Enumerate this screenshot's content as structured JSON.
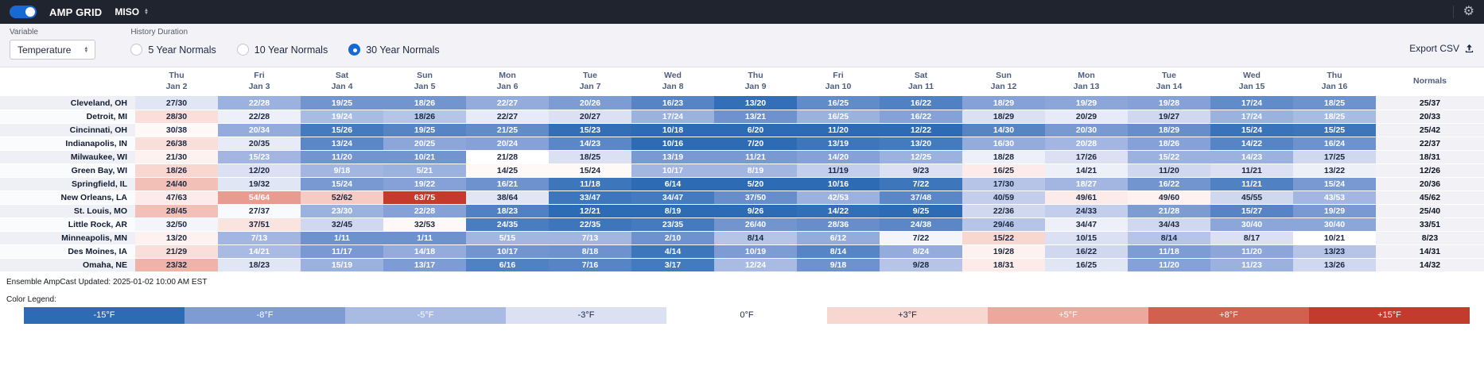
{
  "navbar": {
    "brand": "AMP GRID",
    "region": "MISO"
  },
  "controls": {
    "variable_label": "Variable",
    "variable_value": "Temperature",
    "history_label": "History Duration",
    "options": [
      {
        "label": "5 Year Normals",
        "selected": false
      },
      {
        "label": "10 Year Normals",
        "selected": false
      },
      {
        "label": "30 Year Normals",
        "selected": true
      }
    ],
    "export_label": "Export CSV"
  },
  "chart_data": {
    "type": "heatmap",
    "value_format": "min/max temperature °F",
    "columns": [
      {
        "day": "Thu",
        "date": "Jan 2"
      },
      {
        "day": "Fri",
        "date": "Jan 3"
      },
      {
        "day": "Sat",
        "date": "Jan 4"
      },
      {
        "day": "Sun",
        "date": "Jan 5"
      },
      {
        "day": "Mon",
        "date": "Jan 6"
      },
      {
        "day": "Tue",
        "date": "Jan 7"
      },
      {
        "day": "Wed",
        "date": "Jan 8"
      },
      {
        "day": "Thu",
        "date": "Jan 9"
      },
      {
        "day": "Fri",
        "date": "Jan 10"
      },
      {
        "day": "Sat",
        "date": "Jan 11"
      },
      {
        "day": "Sun",
        "date": "Jan 12"
      },
      {
        "day": "Mon",
        "date": "Jan 13"
      },
      {
        "day": "Tue",
        "date": "Jan 14"
      },
      {
        "day": "Wed",
        "date": "Jan 15"
      },
      {
        "day": "Thu",
        "date": "Jan 16"
      }
    ],
    "normals_header": "Normals",
    "rows": [
      {
        "city": "Cleveland, OH",
        "values": [
          "27/30",
          "22/28",
          "19/25",
          "18/26",
          "22/27",
          "20/26",
          "16/23",
          "13/20",
          "16/25",
          "16/22",
          "18/29",
          "19/29",
          "19/28",
          "17/24",
          "18/25"
        ],
        "normals": "25/37"
      },
      {
        "city": "Detroit, MI",
        "values": [
          "28/30",
          "22/28",
          "19/24",
          "18/26",
          "22/27",
          "20/27",
          "17/24",
          "13/21",
          "16/25",
          "16/22",
          "18/29",
          "20/29",
          "19/27",
          "17/24",
          "18/25"
        ],
        "normals": "20/33"
      },
      {
        "city": "Cincinnati, OH",
        "values": [
          "30/38",
          "20/34",
          "15/26",
          "19/25",
          "21/25",
          "15/23",
          "10/18",
          "6/20",
          "11/20",
          "12/22",
          "14/30",
          "20/30",
          "18/29",
          "15/24",
          "15/25"
        ],
        "normals": "25/42"
      },
      {
        "city": "Indianapolis, IN",
        "values": [
          "26/38",
          "20/35",
          "13/24",
          "20/25",
          "20/24",
          "14/23",
          "10/16",
          "7/20",
          "13/19",
          "13/20",
          "16/30",
          "20/28",
          "18/26",
          "14/22",
          "16/24"
        ],
        "normals": "22/37"
      },
      {
        "city": "Milwaukee, WI",
        "values": [
          "21/30",
          "15/23",
          "11/20",
          "10/21",
          "21/28",
          "18/25",
          "13/19",
          "11/21",
          "14/20",
          "12/25",
          "18/28",
          "17/26",
          "15/22",
          "14/23",
          "17/25"
        ],
        "normals": "18/31"
      },
      {
        "city": "Green Bay, WI",
        "values": [
          "18/26",
          "12/20",
          "9/18",
          "5/21",
          "14/25",
          "15/24",
          "10/17",
          "8/19",
          "11/19",
          "9/23",
          "16/25",
          "14/21",
          "11/20",
          "11/21",
          "13/22"
        ],
        "normals": "12/26"
      },
      {
        "city": "Springfield, IL",
        "values": [
          "24/40",
          "19/32",
          "15/24",
          "19/22",
          "16/21",
          "11/18",
          "6/14",
          "5/20",
          "10/16",
          "7/22",
          "17/30",
          "18/27",
          "16/22",
          "11/21",
          "15/24"
        ],
        "normals": "20/36"
      },
      {
        "city": "New Orleans, LA",
        "values": [
          "47/63",
          "54/64",
          "52/62",
          "63/75",
          "38/64",
          "33/47",
          "34/47",
          "37/50",
          "42/53",
          "37/48",
          "40/59",
          "49/61",
          "49/60",
          "45/55",
          "43/53"
        ],
        "normals": "45/62"
      },
      {
        "city": "St. Louis, MO",
        "values": [
          "28/45",
          "27/37",
          "23/30",
          "22/28",
          "18/23",
          "12/21",
          "8/19",
          "9/26",
          "14/22",
          "9/25",
          "22/36",
          "24/33",
          "21/28",
          "15/27",
          "19/29"
        ],
        "normals": "25/40"
      },
      {
        "city": "Little Rock, AR",
        "values": [
          "32/50",
          "37/51",
          "32/45",
          "32/53",
          "24/35",
          "22/35",
          "23/35",
          "26/40",
          "28/36",
          "24/38",
          "29/46",
          "34/47",
          "34/43",
          "30/40",
          "30/40"
        ],
        "normals": "33/51"
      },
      {
        "city": "Minneapolis, MN",
        "values": [
          "13/20",
          "7/13",
          "1/11",
          "1/11",
          "5/15",
          "7/13",
          "2/10",
          "8/14",
          "6/12",
          "7/22",
          "15/22",
          "10/15",
          "8/14",
          "8/17",
          "10/21"
        ],
        "normals": "8/23"
      },
      {
        "city": "Des Moines, IA",
        "values": [
          "21/29",
          "14/21",
          "11/17",
          "14/18",
          "10/17",
          "8/18",
          "4/14",
          "10/19",
          "8/14",
          "8/24",
          "19/28",
          "16/22",
          "11/18",
          "11/20",
          "13/23"
        ],
        "normals": "14/31"
      },
      {
        "city": "Omaha, NE",
        "values": [
          "23/32",
          "18/23",
          "15/19",
          "13/17",
          "6/16",
          "7/16",
          "3/17",
          "12/24",
          "9/18",
          "9/28",
          "18/31",
          "16/25",
          "11/20",
          "11/23",
          "13/26"
        ],
        "normals": "14/32"
      }
    ],
    "legend": {
      "title": "Color Legend:",
      "stops": [
        {
          "label": "-15°F",
          "dev": -15,
          "color": "#2d6cb5"
        },
        {
          "label": "-8°F",
          "dev": -8,
          "color": "#7e9cd4"
        },
        {
          "label": "-5°F",
          "dev": -5,
          "color": "#a9bbe3"
        },
        {
          "label": "-3°F",
          "dev": -3,
          "color": "#dbe1f3"
        },
        {
          "label": "0°F",
          "dev": 0,
          "color": "#ffffff"
        },
        {
          "label": "+3°F",
          "dev": 3,
          "color": "#f8d7d1"
        },
        {
          "label": "+5°F",
          "dev": 5,
          "color": "#eca89c"
        },
        {
          "label": "+8°F",
          "dev": 8,
          "color": "#d2604f"
        },
        {
          "label": "+15°F",
          "dev": 15,
          "color": "#c23b2c"
        }
      ]
    }
  },
  "footer": {
    "updated": "Ensemble AmpCast Updated: 2025-01-02 10:00 AM EST"
  }
}
